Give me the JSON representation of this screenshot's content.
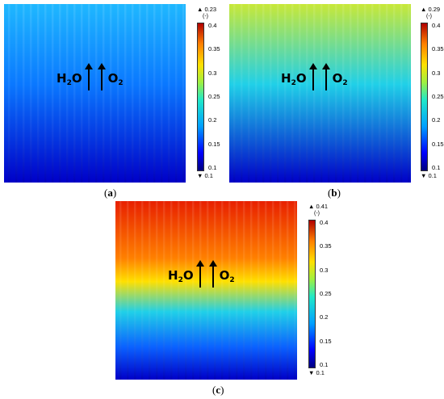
{
  "panels": [
    {
      "id": "a",
      "caption_open": "(",
      "caption_letter": "a",
      "caption_close": ")",
      "max_label": "▲ 0.23",
      "min_label": "▼ 0.1",
      "unit": "(-)",
      "ticks": [
        "0.4",
        "0.35",
        "0.3",
        "0.25",
        "0.2",
        "0.15",
        "0.1"
      ],
      "colors": {
        "top": "#1fb8ff",
        "mid": "#0a78ff",
        "bottom": "#0000c8"
      },
      "arrow_labels": {
        "left": "H",
        "left_sub": "2",
        "left_tail": "O",
        "right": "O",
        "right_sub": "2"
      }
    },
    {
      "id": "b",
      "caption_open": "(",
      "caption_letter": "b",
      "caption_close": ")",
      "max_label": "▲ 0.29",
      "min_label": "▼ 0.1",
      "unit": "(-)",
      "ticks": [
        "0.4",
        "0.35",
        "0.3",
        "0.25",
        "0.2",
        "0.15",
        "0.1"
      ],
      "colors": {
        "top": "#c8e838",
        "mid": "#20d0e8",
        "bottom": "#0000c8"
      },
      "arrow_labels": {
        "left": "H",
        "left_sub": "2",
        "left_tail": "O",
        "right": "O",
        "right_sub": "2"
      }
    },
    {
      "id": "c",
      "caption_open": "(",
      "caption_letter": "c",
      "caption_close": ")",
      "max_label": "▲ 0.41",
      "min_label": "▼ 0.1",
      "unit": "(-)",
      "ticks": [
        "0.4",
        "0.35",
        "0.3",
        "0.25",
        "0.2",
        "0.15",
        "0.1"
      ],
      "colors": {
        "top": "#e82000",
        "mid": "#ffe000",
        "low": "#20d0e8",
        "bottom": "#0000c8"
      },
      "arrow_labels": {
        "left": "H",
        "left_sub": "2",
        "left_tail": "O",
        "right": "O",
        "right_sub": "2"
      }
    }
  ]
}
